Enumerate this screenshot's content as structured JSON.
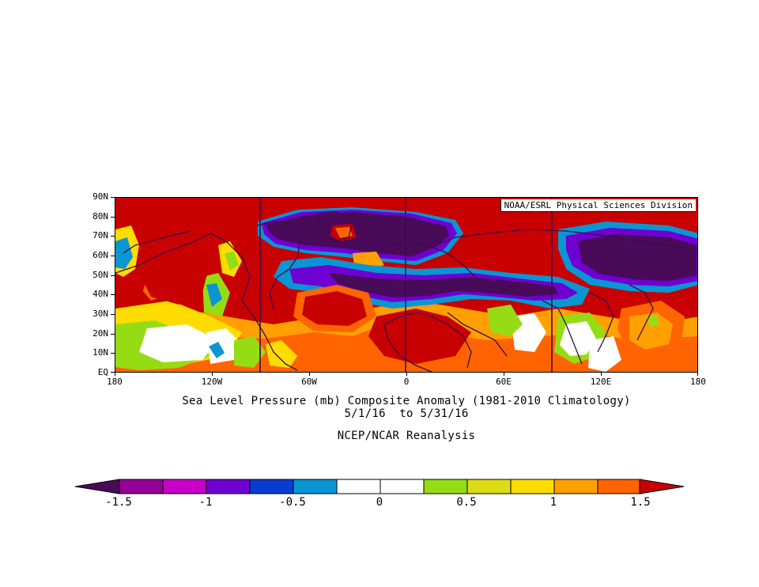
{
  "map": {
    "credit": "NOAA/ESRL Physical Sciences Division",
    "lat_labels": [
      "90N",
      "80N",
      "70N",
      "60N",
      "50N",
      "40N",
      "30N",
      "20N",
      "10N",
      "EQ"
    ],
    "lon_labels": [
      "180",
      "120W",
      "60W",
      "0",
      "60E",
      "120E",
      "180"
    ]
  },
  "caption": {
    "line1": "Sea Level Pressure (mb) Composite Anomaly (1981-2010 Climatology)",
    "line2": "5/1/16  to 5/31/16",
    "line3": "NCEP/NCAR Reanalysis"
  },
  "colorbar": {
    "labels": [
      "-1.5",
      "-1",
      "-0.5",
      "0",
      "0.5",
      "1",
      "1.5"
    ],
    "colors": [
      "#4a0a5a",
      "#960096",
      "#c800c8",
      "#6e00d2",
      "#0a3cd2",
      "#0a96d2",
      "#ffffff",
      "#ffffff",
      "#96dc14",
      "#dcdc14",
      "#ffdc00",
      "#ffa000",
      "#ff6400",
      "#c80000"
    ]
  }
}
